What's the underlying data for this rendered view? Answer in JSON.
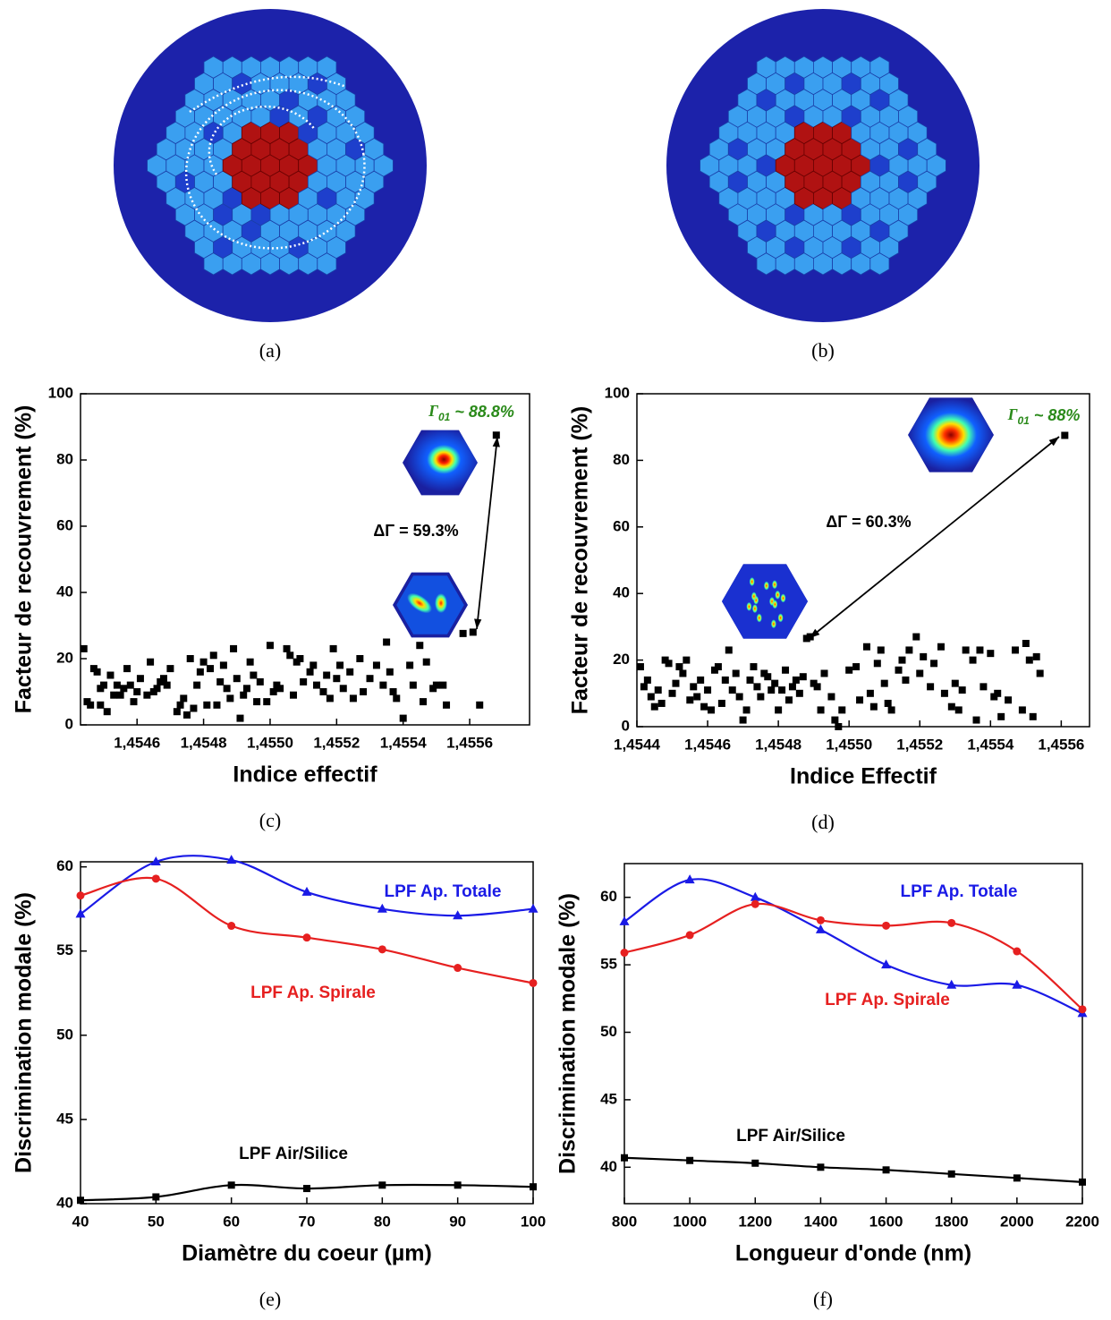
{
  "figures": [
    {
      "caption": "(a)"
    },
    {
      "caption": "(b)"
    }
  ],
  "chart_data": [
    {
      "type": "scatter",
      "caption": "(c)",
      "x_label": "Indice effectif",
      "y_label": "Facteur de recouvrement (%)",
      "color": "#000000",
      "xlim": [
        1.45443,
        1.45578
      ],
      "ylim": [
        0,
        100
      ],
      "xticks": [
        {
          "value": 1.4546,
          "label": "1,4546"
        },
        {
          "value": 1.4548,
          "label": "1,4548"
        },
        {
          "value": 1.455,
          "label": "1,4550"
        },
        {
          "value": 1.4552,
          "label": "1,4552"
        },
        {
          "value": 1.4554,
          "label": "1,4554"
        },
        {
          "value": 1.4556,
          "label": "1,4556"
        }
      ],
      "yticks": [
        0,
        20,
        40,
        60,
        80,
        100
      ],
      "grid": false,
      "x": [
        1.45444,
        1.45445,
        1.45446,
        1.45447,
        1.45448,
        1.45449,
        1.45449,
        1.4545,
        1.45451,
        1.45452,
        1.45453,
        1.45454,
        1.45455,
        1.45456,
        1.45457,
        1.45458,
        1.45459,
        1.4546,
        1.45461,
        1.45463,
        1.45464,
        1.45465,
        1.45466,
        1.45467,
        1.45468,
        1.45469,
        1.4547,
        1.45472,
        1.45473,
        1.45474,
        1.45475,
        1.45476,
        1.45477,
        1.45478,
        1.45479,
        1.4548,
        1.45481,
        1.45482,
        1.45483,
        1.45484,
        1.45485,
        1.45486,
        1.45487,
        1.45488,
        1.45489,
        1.4549,
        1.45491,
        1.45492,
        1.45493,
        1.45494,
        1.45495,
        1.45496,
        1.45497,
        1.45499,
        1.455,
        1.45501,
        1.45502,
        1.45503,
        1.45505,
        1.45506,
        1.45507,
        1.45508,
        1.45509,
        1.4551,
        1.45512,
        1.45513,
        1.45514,
        1.45516,
        1.45517,
        1.45518,
        1.45519,
        1.4552,
        1.45521,
        1.45522,
        1.45524,
        1.45525,
        1.45527,
        1.45528,
        1.4553,
        1.45532,
        1.45534,
        1.45535,
        1.45536,
        1.45537,
        1.45538,
        1.4554,
        1.45542,
        1.45543,
        1.45545,
        1.45546,
        1.45547,
        1.45549,
        1.4555,
        1.45552,
        1.45553,
        1.45558,
        1.45561,
        1.45563,
        1.45568
      ],
      "values": [
        23,
        7,
        6,
        17,
        16,
        11,
        6,
        12,
        4,
        15,
        9,
        12,
        9,
        11,
        17,
        12,
        7,
        10,
        14,
        9,
        19,
        10,
        11,
        13,
        14,
        12,
        17,
        4,
        6,
        8,
        3,
        20,
        5,
        12,
        16,
        19,
        6,
        17,
        21,
        6,
        13,
        18,
        11,
        8,
        23,
        14,
        2,
        9,
        11,
        19,
        15,
        7,
        13,
        7,
        24,
        10,
        12,
        11,
        23,
        21,
        9,
        19,
        20,
        13,
        16,
        18,
        12,
        10,
        15,
        8,
        23,
        14,
        18,
        11,
        16,
        8,
        20,
        10,
        14,
        18,
        12,
        25,
        16,
        10,
        8,
        2,
        18,
        12,
        24,
        7,
        19,
        11,
        12,
        12,
        6,
        27.6,
        28,
        6,
        87.5
      ],
      "annotation": "ΔΓ = 59.3%",
      "gamma_label": {
        "symbol": "Γ",
        "subscript": "01",
        "text": " ~ 88.8%"
      }
    },
    {
      "type": "scatter",
      "caption": "(d)",
      "x_label": "Indice Effectif",
      "y_label": "Facteur de recouvrement (%)",
      "color": "#000000",
      "xlim": [
        1.4544,
        1.45568
      ],
      "ylim": [
        0,
        100
      ],
      "xticks": [
        {
          "value": 1.4544,
          "label": "1,4544"
        },
        {
          "value": 1.4546,
          "label": "1,4546"
        },
        {
          "value": 1.4548,
          "label": "1,4548"
        },
        {
          "value": 1.455,
          "label": "1,4550"
        },
        {
          "value": 1.4552,
          "label": "1,4552"
        },
        {
          "value": 1.4554,
          "label": "1,4554"
        },
        {
          "value": 1.4556,
          "label": "1,4556"
        }
      ],
      "yticks": [
        0,
        20,
        40,
        60,
        80,
        100
      ],
      "grid": false,
      "x": [
        1.45441,
        1.45442,
        1.45443,
        1.45444,
        1.45445,
        1.45446,
        1.45447,
        1.45448,
        1.45449,
        1.4545,
        1.45451,
        1.45452,
        1.45453,
        1.45454,
        1.45455,
        1.45456,
        1.45457,
        1.45458,
        1.45459,
        1.4546,
        1.45461,
        1.45462,
        1.45463,
        1.45464,
        1.45465,
        1.45466,
        1.45467,
        1.45468,
        1.45469,
        1.4547,
        1.45471,
        1.45472,
        1.45473,
        1.45474,
        1.45475,
        1.45476,
        1.45477,
        1.45478,
        1.45479,
        1.4548,
        1.45481,
        1.45482,
        1.45483,
        1.45484,
        1.45485,
        1.45486,
        1.45487,
        1.45488,
        1.45489,
        1.4549,
        1.45491,
        1.45492,
        1.45493,
        1.45495,
        1.45496,
        1.45497,
        1.45498,
        1.455,
        1.45502,
        1.45503,
        1.45505,
        1.45506,
        1.45507,
        1.45508,
        1.45509,
        1.4551,
        1.45511,
        1.45512,
        1.45514,
        1.45515,
        1.45516,
        1.45517,
        1.45519,
        1.4552,
        1.45521,
        1.45523,
        1.45524,
        1.45526,
        1.45527,
        1.45529,
        1.4553,
        1.45531,
        1.45532,
        1.45533,
        1.45535,
        1.45536,
        1.45537,
        1.45538,
        1.4554,
        1.45541,
        1.45542,
        1.45543,
        1.45545,
        1.45547,
        1.45549,
        1.4555,
        1.45551,
        1.45552,
        1.45553,
        1.45554,
        1.45561
      ],
      "values": [
        18,
        12,
        14,
        9,
        6,
        11,
        7,
        20,
        19,
        10,
        13,
        18,
        16,
        20,
        8,
        12,
        9,
        14,
        6,
        11,
        5,
        17,
        18,
        7,
        14,
        23,
        11,
        16,
        9,
        2,
        5,
        14,
        18,
        12,
        9,
        16,
        15,
        11,
        13,
        5,
        11,
        17,
        8,
        12,
        14,
        10,
        15,
        26.5,
        27,
        13,
        12,
        5,
        16,
        9,
        2,
        0,
        5,
        17,
        18,
        8,
        24,
        10,
        6,
        19,
        23,
        13,
        7,
        5,
        17,
        20,
        14,
        23,
        27,
        16,
        21,
        12,
        19,
        24,
        10,
        6,
        13,
        5,
        11,
        23,
        20,
        2,
        23,
        12,
        22,
        9,
        10,
        3,
        8,
        23,
        5,
        25,
        20,
        3,
        21,
        16,
        87.5
      ],
      "annotation": "ΔΓ = 60.3%",
      "gamma_label": {
        "symbol": "Γ",
        "subscript": "01",
        "text": " ~ 88%"
      }
    },
    {
      "type": "line",
      "caption": "(e)",
      "x_label": "Diamètre du coeur (µm)",
      "y_label": "Discrimination modale (%)",
      "xlim": [
        40,
        100
      ],
      "ylim": [
        40,
        60.3
      ],
      "xticks": [
        40,
        50,
        60,
        70,
        80,
        90,
        100
      ],
      "yticks": [
        40,
        45,
        50,
        55,
        60
      ],
      "grid": false,
      "x": [
        40,
        50,
        60,
        70,
        80,
        90,
        100
      ],
      "series": [
        {
          "name": "LPF Ap. Totale",
          "color": "#1a1ae6",
          "marker": "triangle",
          "values": [
            57.2,
            60.3,
            60.4,
            58.5,
            57.5,
            57.1,
            57.5
          ]
        },
        {
          "name": "LPF Ap. Spirale",
          "color": "#e62020",
          "marker": "circle",
          "values": [
            58.3,
            59.3,
            56.5,
            55.8,
            55.1,
            54.0,
            53.1
          ]
        },
        {
          "name": "LPF Air/Silice",
          "color": "#000000",
          "marker": "square",
          "values": [
            40.2,
            40.4,
            41.1,
            40.9,
            41.1,
            41.1,
            41.0
          ]
        }
      ]
    },
    {
      "type": "line",
      "caption": "(f)",
      "x_label": "Longueur d'onde (nm)",
      "y_label": "Discrimination modale (%)",
      "xlim": [
        800,
        2200
      ],
      "ylim": [
        37.3,
        62.5
      ],
      "xticks": [
        800,
        1000,
        1200,
        1400,
        1600,
        1800,
        2000,
        2200
      ],
      "yticks": [
        40,
        45,
        50,
        55,
        60
      ],
      "grid": false,
      "x": [
        800,
        1000,
        1200,
        1400,
        1600,
        1800,
        2000,
        2200
      ],
      "series": [
        {
          "name": "LPF Ap. Totale",
          "color": "#1a1ae6",
          "marker": "triangle",
          "values": [
            58.2,
            61.3,
            60.0,
            57.6,
            55.0,
            53.5,
            53.5,
            51.4
          ]
        },
        {
          "name": "LPF Ap. Spirale",
          "color": "#e62020",
          "marker": "circle",
          "values": [
            55.9,
            57.2,
            59.5,
            58.3,
            57.9,
            58.1,
            56.0,
            51.7
          ]
        },
        {
          "name": "LPF Air/Silice",
          "color": "#000000",
          "marker": "square",
          "values": [
            40.7,
            40.5,
            40.3,
            40.0,
            39.8,
            39.5,
            39.2,
            38.9
          ]
        }
      ]
    }
  ]
}
